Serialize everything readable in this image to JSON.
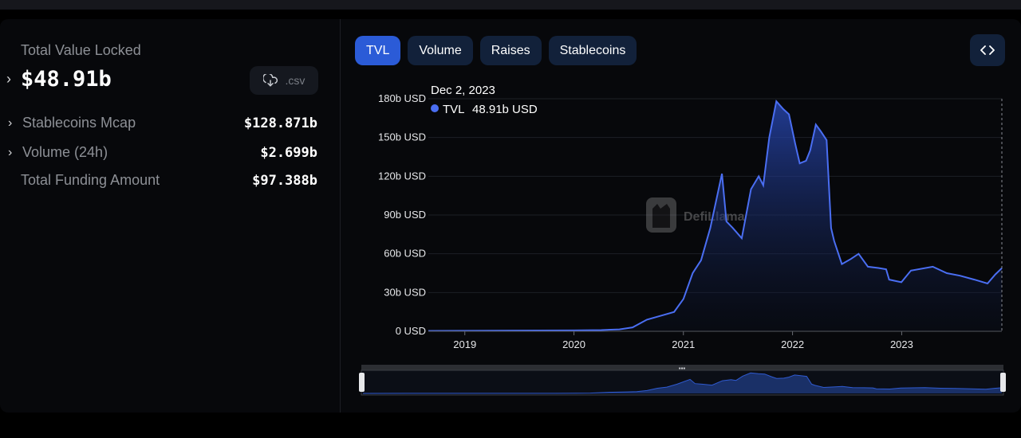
{
  "summary": {
    "tvl_label": "Total Value Locked",
    "tvl_value": "$48.91b",
    "csv_label": ".csv",
    "stats": [
      {
        "label": "Stablecoins Mcap",
        "value": "$128.871b",
        "expandable": true
      },
      {
        "label": "Volume (24h)",
        "value": "$2.699b",
        "expandable": true
      },
      {
        "label": "Total Funding Amount",
        "value": "$97.388b",
        "expandable": false
      }
    ]
  },
  "tabs": [
    {
      "label": "TVL",
      "active": true
    },
    {
      "label": "Volume",
      "active": false
    },
    {
      "label": "Raises",
      "active": false
    },
    {
      "label": "Stablecoins",
      "active": false
    }
  ],
  "tooltip": {
    "date": "Dec 2, 2023",
    "series": "TVL",
    "value": "48.91b USD"
  },
  "watermark": "DefiLlama",
  "colors": {
    "accent": "#2b5bd7",
    "line": "#4a6ef2",
    "tab_bg": "#12213a"
  },
  "icons": {
    "csv": "download-cloud-icon",
    "embed": "code-brackets-icon",
    "expand": "chevron-right-icon"
  },
  "chart_data": {
    "type": "area",
    "series": [
      {
        "name": "TVL"
      }
    ],
    "x_ticks": [
      "2019",
      "2020",
      "2021",
      "2022",
      "2023"
    ],
    "y_ticks": [
      "0 USD",
      "30b USD",
      "60b USD",
      "90b USD",
      "120b USD",
      "150b USD",
      "180b USD"
    ],
    "ylim": [
      0,
      180
    ],
    "y_unit": "b USD",
    "xlim": [
      "2018-09-01",
      "2023-12-02"
    ],
    "points": [
      [
        "2018-09-01",
        0.3
      ],
      [
        "2019-03-01",
        0.5
      ],
      [
        "2019-09-01",
        0.6
      ],
      [
        "2020-01-01",
        0.7
      ],
      [
        "2020-04-01",
        0.9
      ],
      [
        "2020-06-01",
        1.5
      ],
      [
        "2020-07-15",
        3
      ],
      [
        "2020-09-01",
        9
      ],
      [
        "2020-11-01",
        13
      ],
      [
        "2020-12-01",
        15
      ],
      [
        "2021-01-01",
        25
      ],
      [
        "2021-02-01",
        45
      ],
      [
        "2021-03-01",
        55
      ],
      [
        "2021-04-01",
        80
      ],
      [
        "2021-05-10",
        122
      ],
      [
        "2021-05-25",
        85
      ],
      [
        "2021-06-15",
        80
      ],
      [
        "2021-07-15",
        72
      ],
      [
        "2021-08-15",
        110
      ],
      [
        "2021-09-10",
        120
      ],
      [
        "2021-09-25",
        113
      ],
      [
        "2021-10-15",
        150
      ],
      [
        "2021-11-08",
        178
      ],
      [
        "2021-12-01",
        172
      ],
      [
        "2021-12-20",
        168
      ],
      [
        "2022-01-10",
        145
      ],
      [
        "2022-01-25",
        130
      ],
      [
        "2022-02-15",
        132
      ],
      [
        "2022-03-01",
        140
      ],
      [
        "2022-03-20",
        160
      ],
      [
        "2022-04-05",
        155
      ],
      [
        "2022-04-25",
        148
      ],
      [
        "2022-05-10",
        80
      ],
      [
        "2022-05-20",
        70
      ],
      [
        "2022-06-15",
        52
      ],
      [
        "2022-07-15",
        56
      ],
      [
        "2022-08-10",
        60
      ],
      [
        "2022-09-10",
        50
      ],
      [
        "2022-10-15",
        49
      ],
      [
        "2022-11-10",
        48
      ],
      [
        "2022-11-20",
        40
      ],
      [
        "2022-12-31",
        38
      ],
      [
        "2023-02-01",
        47
      ],
      [
        "2023-04-15",
        50
      ],
      [
        "2023-06-01",
        45
      ],
      [
        "2023-07-15",
        43
      ],
      [
        "2023-09-01",
        40
      ],
      [
        "2023-10-15",
        37
      ],
      [
        "2023-11-10",
        44
      ],
      [
        "2023-12-02",
        48.91
      ]
    ]
  }
}
